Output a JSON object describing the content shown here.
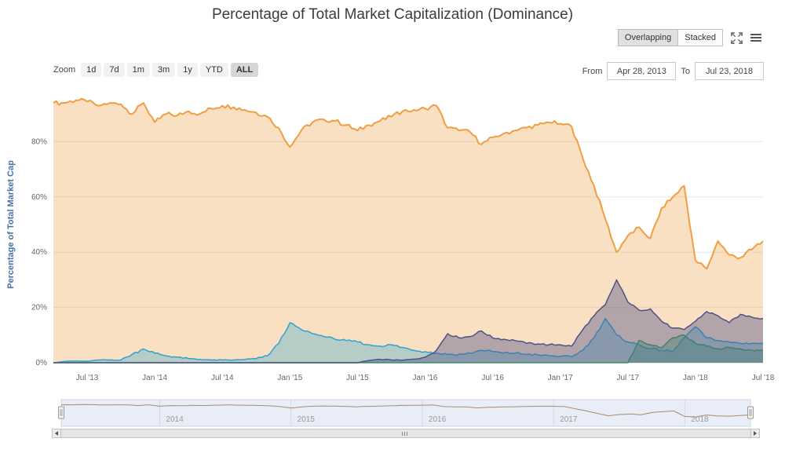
{
  "page": {
    "title": "Percentage of Total Market Capitalization (Dominance)"
  },
  "toolbar": {
    "overlapping_label": "Overlapping",
    "stacked_label": "Stacked",
    "selected": "Overlapping"
  },
  "zoom": {
    "label": "Zoom",
    "options": [
      "1d",
      "7d",
      "1m",
      "3m",
      "1y",
      "YTD",
      "ALL"
    ],
    "selected": "ALL"
  },
  "range": {
    "from_label": "From",
    "from_value": "Apr 28, 2013",
    "to_label": "To",
    "to_value": "Jul 23, 2018"
  },
  "chart_data": {
    "type": "area",
    "title": "Percentage of Total Market Capitalization (Dominance)",
    "ylabel": "Percentage of Total Market Cap",
    "ylabel_color": "#4572a7",
    "ylim": [
      0,
      100
    ],
    "yticks": [
      0,
      20,
      40,
      60,
      80
    ],
    "ytick_labels": [
      "0%",
      "20%",
      "40%",
      "60%",
      "80%"
    ],
    "xtick_indices": [
      3,
      9,
      15,
      21,
      27,
      33,
      39,
      45,
      51,
      57,
      63
    ],
    "xtick_labels": [
      "Jul '13",
      "Jan '14",
      "Jul '14",
      "Jan '15",
      "Jul '15",
      "Jan '16",
      "Jul '16",
      "Jan '17",
      "Jul '17",
      "Jan '18",
      "Jul '18"
    ],
    "x_start": "Apr 2013",
    "x_end": "Jul 2018",
    "x_unit": "month",
    "grid": "horizontal",
    "legend": "none",
    "series": [
      {
        "name": "orange",
        "color": "#ef9f42",
        "fill_opacity": 0.32,
        "values": [
          94,
          94,
          95,
          94.5,
          93,
          94,
          93.5,
          90,
          94,
          87,
          90,
          89.5,
          91,
          90,
          92,
          93,
          92.5,
          91.5,
          90.5,
          89,
          85,
          78,
          84,
          87,
          88,
          87.5,
          86,
          84,
          86,
          87.5,
          89,
          91,
          91.5,
          92,
          93,
          85,
          84,
          83.5,
          79,
          81.5,
          83,
          84,
          85,
          86,
          87,
          86.5,
          85.5,
          74,
          64,
          52,
          40,
          46,
          49,
          45,
          56,
          60,
          64,
          37,
          34,
          44,
          39,
          38,
          41,
          44
        ]
      },
      {
        "name": "dark-purple",
        "color": "#4e5287",
        "fill_opacity": 0.42,
        "values": [
          0,
          0,
          0,
          0,
          0,
          0,
          0,
          0,
          0,
          0,
          0,
          0,
          0,
          0,
          0,
          0,
          0,
          0,
          0,
          0,
          0,
          0,
          0,
          0,
          0,
          0,
          0,
          0,
          0.8,
          1.2,
          1,
          0.9,
          1.3,
          2,
          4.5,
          10.5,
          9,
          9.5,
          11.5,
          9,
          8.5,
          8,
          7,
          6.8,
          6.5,
          6.5,
          6,
          12,
          17,
          21,
          30,
          22,
          19,
          19.5,
          15,
          12.5,
          12,
          15,
          18.5,
          17,
          14.5,
          17.5,
          16.5,
          16
        ]
      },
      {
        "name": "cyan",
        "color": "#2fa3cf",
        "fill_opacity": 0.33,
        "values": [
          0,
          0.5,
          0.6,
          0.5,
          1,
          1,
          1,
          3,
          5,
          3.5,
          2.5,
          2,
          1.5,
          1.2,
          1,
          1,
          1,
          1.2,
          1.5,
          2.5,
          7,
          14.5,
          12,
          10.5,
          9.5,
          8.5,
          8,
          7.5,
          6.5,
          6,
          6.5,
          5.5,
          4.5,
          4,
          3.5,
          3,
          3,
          3.5,
          4.5,
          4,
          3.5,
          3.5,
          3,
          2.8,
          2.5,
          2.3,
          2.2,
          4.5,
          9,
          16,
          10,
          7.5,
          6.5,
          5,
          4.5,
          4,
          9,
          13,
          9,
          8,
          7.5,
          7,
          7,
          7
        ]
      },
      {
        "name": "green",
        "color": "#37a160",
        "fill_opacity": 0.4,
        "values": [
          0,
          0,
          0,
          0,
          0,
          0,
          0,
          0,
          0,
          0,
          0,
          0,
          0,
          0,
          0,
          0,
          0,
          0,
          0,
          0,
          0,
          0,
          0,
          0,
          0,
          0,
          0,
          0,
          0,
          0,
          0,
          0,
          0,
          0,
          0,
          0,
          0,
          0,
          0,
          0,
          0,
          0,
          0,
          0,
          0,
          0,
          0,
          0,
          0,
          0,
          0,
          0,
          8,
          6.5,
          5.5,
          9,
          10,
          7,
          6,
          5,
          5.5,
          5,
          4.5,
          4.5
        ]
      }
    ]
  },
  "navigator": {
    "year_labels": [
      "2014",
      "2015",
      "2016",
      "2017",
      "2018"
    ],
    "year_indices": [
      9,
      21,
      33,
      45,
      57
    ],
    "line_color": "#a98a6d",
    "bg_color": "#e9edf8"
  }
}
